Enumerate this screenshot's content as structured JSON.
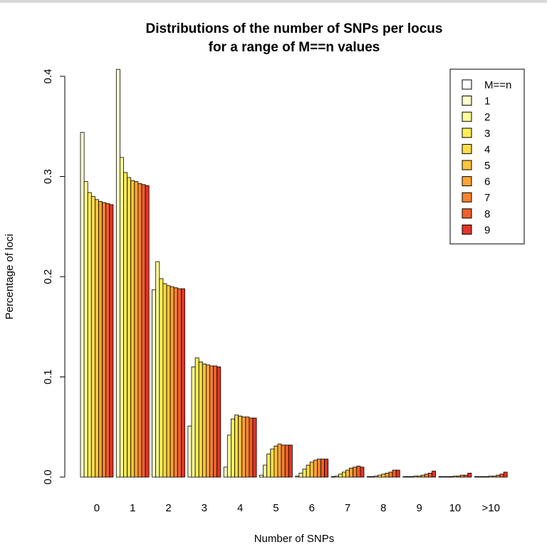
{
  "chart_data": {
    "type": "bar",
    "title": [
      "Distributions of the number of SNPs per locus",
      "for a range of M==n values"
    ],
    "xlabel": "Number of SNPs",
    "ylabel": "Percentage of loci",
    "ylim": [
      0,
      0.4
    ],
    "yticks": [
      0.0,
      0.1,
      0.2,
      0.3,
      0.4
    ],
    "ytick_labels": [
      "0.0",
      "0.1",
      "0.2",
      "0.3",
      "0.4"
    ],
    "categories": [
      "0",
      "1",
      "2",
      "3",
      "4",
      "5",
      "6",
      "7",
      "8",
      "9",
      "10",
      ">10"
    ],
    "legend": {
      "title": "M==n",
      "position": "top-right"
    },
    "series": [
      {
        "name": "1",
        "color": "#FFFFCC",
        "values": [
          0.344,
          0.407,
          0.187,
          0.051,
          0.01,
          0.002,
          0.001,
          0.0,
          0.0,
          0.0,
          0.0,
          0.0
        ]
      },
      {
        "name": "2",
        "color": "#FFFF99",
        "values": [
          0.295,
          0.319,
          0.215,
          0.11,
          0.042,
          0.012,
          0.004,
          0.001,
          0.0,
          0.0,
          0.0,
          0.0
        ]
      },
      {
        "name": "3",
        "color": "#FFEF55",
        "values": [
          0.284,
          0.304,
          0.198,
          0.119,
          0.058,
          0.023,
          0.008,
          0.003,
          0.001,
          0.0,
          0.0,
          0.0
        ]
      },
      {
        "name": "4",
        "color": "#FEDC48",
        "values": [
          0.28,
          0.299,
          0.193,
          0.115,
          0.062,
          0.028,
          0.012,
          0.005,
          0.002,
          0.001,
          0.0,
          0.0
        ]
      },
      {
        "name": "5",
        "color": "#FEC23C",
        "values": [
          0.277,
          0.296,
          0.191,
          0.113,
          0.061,
          0.031,
          0.015,
          0.007,
          0.003,
          0.001,
          0.001,
          0.001
        ]
      },
      {
        "name": "6",
        "color": "#FDA435",
        "values": [
          0.275,
          0.295,
          0.19,
          0.112,
          0.06,
          0.033,
          0.017,
          0.009,
          0.004,
          0.002,
          0.001,
          0.001
        ]
      },
      {
        "name": "7",
        "color": "#F8832D",
        "values": [
          0.274,
          0.293,
          0.189,
          0.111,
          0.06,
          0.032,
          0.018,
          0.01,
          0.005,
          0.003,
          0.002,
          0.002
        ]
      },
      {
        "name": "8",
        "color": "#F06028",
        "values": [
          0.273,
          0.292,
          0.188,
          0.111,
          0.059,
          0.032,
          0.018,
          0.011,
          0.007,
          0.004,
          0.002,
          0.003
        ]
      },
      {
        "name": "9",
        "color": "#E33425",
        "values": [
          0.272,
          0.291,
          0.188,
          0.11,
          0.059,
          0.032,
          0.018,
          0.01,
          0.007,
          0.006,
          0.004,
          0.005
        ]
      }
    ]
  }
}
